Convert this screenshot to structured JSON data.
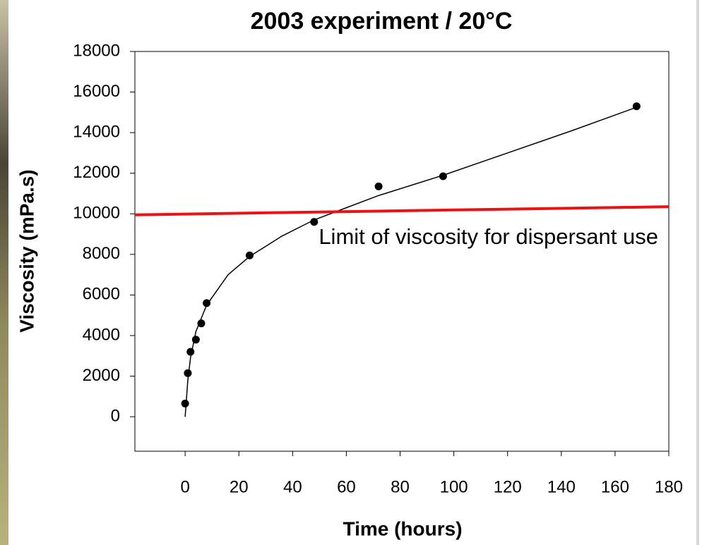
{
  "chart_data": {
    "type": "scatter",
    "title": "2003 experiment / 20°C",
    "x_label": "Time (hours)",
    "y_label": "Viscosity (mPa.s)",
    "annotation": "Limit of viscosity for dispersant use",
    "annotation_color": "#ee1111",
    "xlim": [
      -18.7,
      180
    ],
    "xticks": [
      0,
      20,
      40,
      60,
      80,
      100,
      120,
      140,
      160,
      180
    ],
    "ylim": [
      -1700,
      18000
    ],
    "yticks": [
      0,
      2000,
      4000,
      6000,
      8000,
      10000,
      12000,
      14000,
      16000,
      18000
    ],
    "series": [
      {
        "mode": "markers",
        "color": "#000000",
        "x": [
          0,
          1,
          2,
          4,
          6,
          8,
          24,
          48,
          72,
          96,
          168
        ],
        "values": [
          650,
          2150,
          3200,
          3800,
          4600,
          5600,
          7950,
          9600,
          11350,
          11850,
          15300
        ]
      },
      {
        "mode": "line",
        "color": "#000000",
        "x": [
          0,
          1,
          2,
          4,
          8,
          16,
          24,
          36,
          48,
          60,
          72,
          96,
          120,
          144,
          168
        ],
        "values": [
          0,
          1800,
          2900,
          4200,
          5500,
          7000,
          7900,
          8900,
          9700,
          10300,
          10900,
          11900,
          13000,
          14100,
          15250
        ]
      },
      {
        "mode": "limit",
        "color": "#ee1111",
        "x": [
          -18.7,
          180
        ],
        "values": [
          9950,
          10350
        ]
      }
    ]
  }
}
